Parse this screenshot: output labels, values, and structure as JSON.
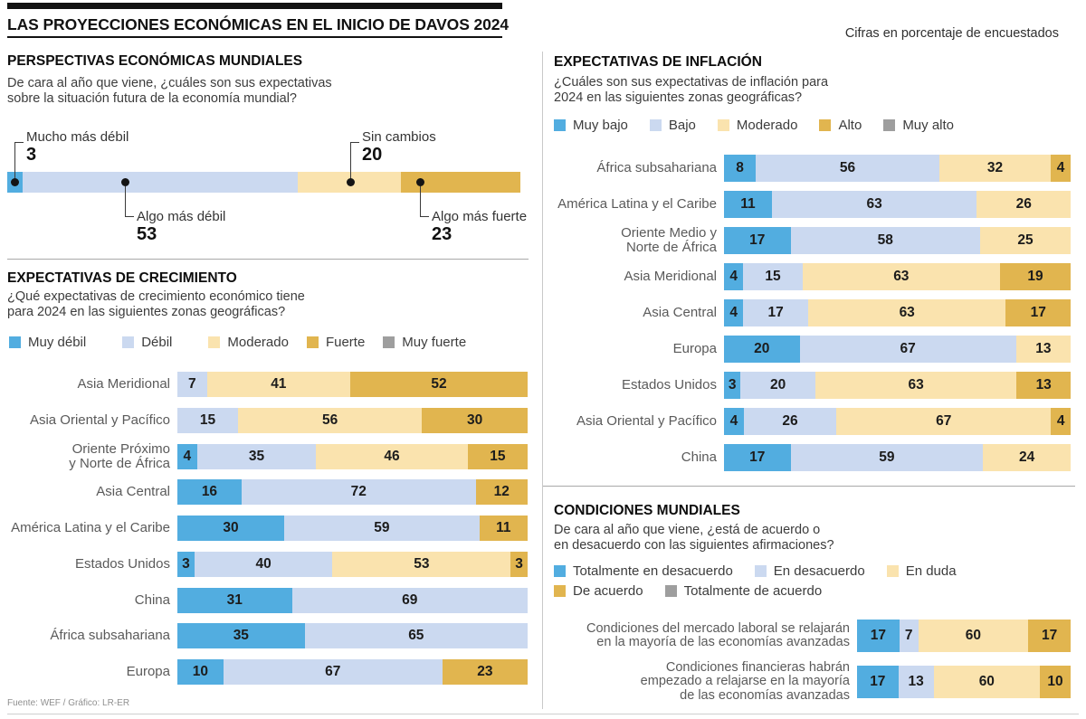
{
  "header": {
    "title": "LAS PROYECCIONES ECONÓMICAS EN EL INICIO DE DAVOS 2024",
    "note": "Cifras en porcentaje de encuestados"
  },
  "footer": {
    "source": "Fuente: WEF / Gráfico: LR-ER"
  },
  "palette": {
    "swatches": [
      "#52ADE0",
      "#CBD9F0",
      "#FAE3AE",
      "#E1B54F",
      "#9E9E9E"
    ],
    "dot": "#141414"
  },
  "chart_data": [
    {
      "id": "perspectivas",
      "type": "bar",
      "title": "PERSPECTIVAS ECONÓMICAS MUNDIALES",
      "question": [
        "De cara al año que viene, ¿cuáles son sus expectativas",
        "sobre la situación futura de la economía mundial?"
      ],
      "units": "% de encuestados",
      "categories": [
        "Mucho más débil",
        "Algo más débil",
        "Sin cambios",
        "Algo más fuerte"
      ],
      "values": [
        3,
        53,
        20,
        23
      ],
      "color_indices": [
        0,
        1,
        2,
        3
      ]
    },
    {
      "id": "crecimiento",
      "type": "stacked_bar",
      "title": "EXPECTATIVAS DE CRECIMIENTO",
      "question": [
        "¿Qué expectativas de crecimiento económico tiene",
        "para 2024 en las siguientes zonas geográficas?"
      ],
      "units": "% de encuestados",
      "legend_rows": [
        [
          "Muy débil",
          "Débil",
          "Moderado",
          "Fuerte",
          "Muy fuerte"
        ]
      ],
      "rows": [
        {
          "label": [
            "Asia Meridional"
          ],
          "segments": [
            {
              "category": "Débil",
              "value": 7
            },
            {
              "category": "Moderado",
              "value": 41
            },
            {
              "category": "Fuerte",
              "value": 52
            }
          ]
        },
        {
          "label": [
            "Asia Oriental y Pacífico"
          ],
          "segments": [
            {
              "category": "Débil",
              "value": 15
            },
            {
              "category": "Moderado",
              "value": 56
            },
            {
              "category": "Fuerte",
              "value": 30
            }
          ]
        },
        {
          "label": [
            "Oriente Próximo",
            "y Norte de África"
          ],
          "segments": [
            {
              "category": "Muy débil",
              "value": 4
            },
            {
              "category": "Débil",
              "value": 35
            },
            {
              "category": "Moderado",
              "value": 46
            },
            {
              "category": "Fuerte",
              "value": 15
            }
          ]
        },
        {
          "label": [
            "Asia Central"
          ],
          "segments": [
            {
              "category": "Muy débil",
              "value": 16
            },
            {
              "category": "Débil",
              "value": 72
            },
            {
              "category": "Fuerte",
              "value": 12
            }
          ]
        },
        {
          "label": [
            "América Latina y el Caribe"
          ],
          "segments": [
            {
              "category": "Muy débil",
              "value": 30
            },
            {
              "category": "Débil",
              "value": 59
            },
            {
              "category": "Fuerte",
              "value": 11
            }
          ]
        },
        {
          "label": [
            "Estados Unidos"
          ],
          "segments": [
            {
              "category": "Muy débil",
              "value": 3
            },
            {
              "category": "Débil",
              "value": 40
            },
            {
              "category": "Moderado",
              "value": 53
            },
            {
              "category": "Fuerte",
              "value": 3
            }
          ]
        },
        {
          "label": [
            "China"
          ],
          "segments": [
            {
              "category": "Muy débil",
              "value": 31
            },
            {
              "category": "Débil",
              "value": 69
            }
          ]
        },
        {
          "label": [
            "África subsahariana"
          ],
          "segments": [
            {
              "category": "Muy débil",
              "value": 35
            },
            {
              "category": "Débil",
              "value": 65
            }
          ]
        },
        {
          "label": [
            "Europa"
          ],
          "segments": [
            {
              "category": "Muy débil",
              "value": 10
            },
            {
              "category": "Débil",
              "value": 67
            },
            {
              "category": "Fuerte",
              "value": 23
            }
          ]
        }
      ]
    },
    {
      "id": "inflacion",
      "type": "stacked_bar",
      "title": "EXPECTATIVAS DE INFLACIÓN",
      "question": [
        "¿Cuáles son sus expectativas de inflación para",
        "2024 en las siguientes zonas geográficas?"
      ],
      "units": "% de encuestados",
      "legend_rows": [
        [
          "Muy bajo",
          "Bajo",
          "Moderado",
          "Alto",
          "Muy alto"
        ]
      ],
      "rows": [
        {
          "label": [
            "África subsahariana"
          ],
          "segments": [
            {
              "category": "Muy bajo",
              "value": 8
            },
            {
              "category": "Bajo",
              "value": 56
            },
            {
              "category": "Moderado",
              "value": 32
            },
            {
              "category": "Alto",
              "value": 4
            }
          ]
        },
        {
          "label": [
            "América Latina y el Caribe"
          ],
          "segments": [
            {
              "category": "Muy bajo",
              "value": 11
            },
            {
              "category": "Bajo",
              "value": 63
            },
            {
              "category": "Moderado",
              "value": 26
            }
          ]
        },
        {
          "label": [
            "Oriente Medio y",
            "Norte de África"
          ],
          "segments": [
            {
              "category": "Muy bajo",
              "value": 17
            },
            {
              "category": "Bajo",
              "value": 58
            },
            {
              "category": "Moderado",
              "value": 25
            }
          ]
        },
        {
          "label": [
            "Asia Meridional"
          ],
          "segments": [
            {
              "category": "Muy bajo",
              "value": 4
            },
            {
              "category": "Bajo",
              "value": 15
            },
            {
              "category": "Moderado",
              "value": 63
            },
            {
              "category": "Alto",
              "value": 19
            }
          ]
        },
        {
          "label": [
            "Asia Central"
          ],
          "segments": [
            {
              "category": "Muy bajo",
              "value": 4
            },
            {
              "category": "Bajo",
              "value": 17
            },
            {
              "category": "Moderado",
              "value": 63
            },
            {
              "category": "Alto",
              "value": 17
            }
          ]
        },
        {
          "label": [
            "Europa"
          ],
          "segments": [
            {
              "category": "Muy bajo",
              "value": 20
            },
            {
              "category": "Bajo",
              "value": 67
            },
            {
              "category": "Moderado",
              "value": 13
            }
          ]
        },
        {
          "label": [
            "Estados Unidos"
          ],
          "segments": [
            {
              "category": "Muy bajo",
              "value": 3
            },
            {
              "category": "Bajo",
              "value": 20
            },
            {
              "category": "Moderado",
              "value": 63
            },
            {
              "category": "Alto",
              "value": 13
            }
          ]
        },
        {
          "label": [
            "Asia Oriental y Pacífico"
          ],
          "segments": [
            {
              "category": "Muy bajo",
              "value": 4
            },
            {
              "category": "Bajo",
              "value": 26
            },
            {
              "category": "Moderado",
              "value": 67
            },
            {
              "category": "Alto",
              "value": 4
            }
          ]
        },
        {
          "label": [
            "China"
          ],
          "segments": [
            {
              "category": "Muy bajo",
              "value": 17
            },
            {
              "category": "Bajo",
              "value": 59
            },
            {
              "category": "Moderado",
              "value": 24
            }
          ]
        }
      ]
    },
    {
      "id": "condiciones",
      "type": "stacked_bar",
      "title": "CONDICIONES MUNDIALES",
      "question": [
        "De cara al año que viene, ¿está de acuerdo o",
        "en desacuerdo con las siguientes afirmaciones?"
      ],
      "units": "% de encuestados",
      "legend_rows": [
        [
          "Totalmente en desacuerdo",
          "En desacuerdo",
          "En duda"
        ],
        [
          "De acuerdo",
          "Totalmente de acuerdo"
        ]
      ],
      "rows": [
        {
          "label": [
            "Condiciones del mercado laboral se relajarán",
            "en la mayoría de las economías avanzadas"
          ],
          "segments": [
            {
              "category": "Totalmente en desacuerdo",
              "value": 17
            },
            {
              "category": "En desacuerdo",
              "value": 7
            },
            {
              "category": "En duda",
              "value": 60
            },
            {
              "category": "De acuerdo",
              "value": 17
            }
          ]
        },
        {
          "label": [
            "Condiciones financieras habrán",
            "empezado a relajarse en la mayoría",
            "de las economías avanzadas"
          ],
          "segments": [
            {
              "category": "Totalmente en desacuerdo",
              "value": 17
            },
            {
              "category": "En desacuerdo",
              "value": 13
            },
            {
              "category": "En duda",
              "value": 60
            },
            {
              "category": "De acuerdo",
              "value": 10
            }
          ]
        }
      ]
    }
  ]
}
